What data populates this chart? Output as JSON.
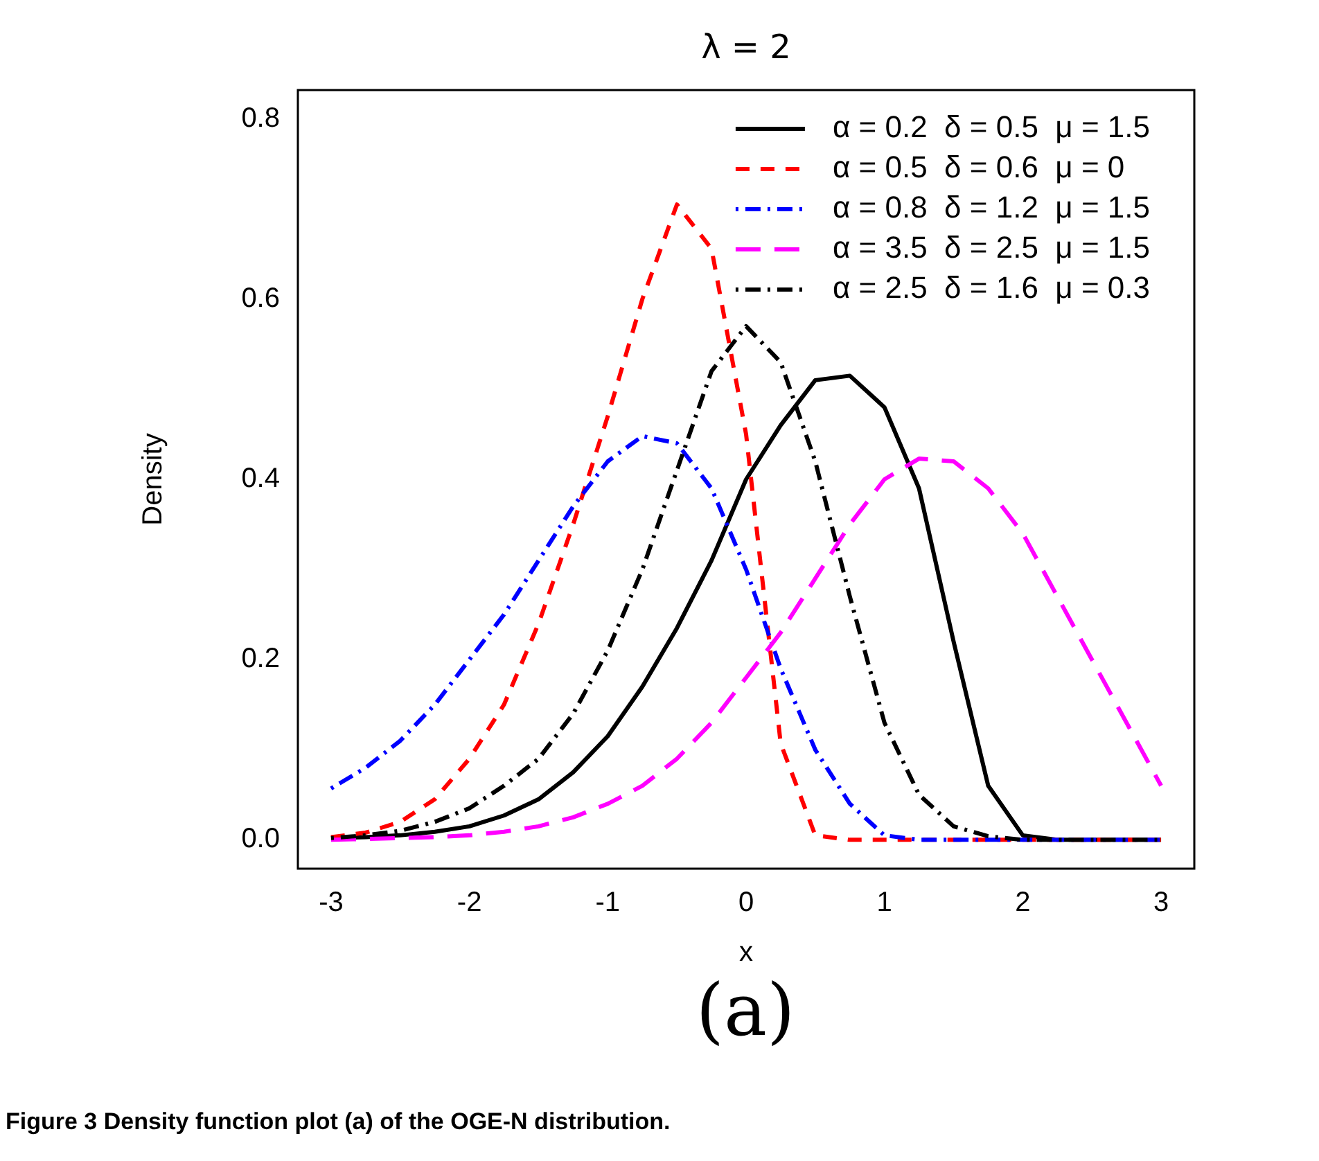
{
  "chart_data": {
    "type": "line",
    "title": "λ = 2",
    "xlabel": "x",
    "ylabel": "Density",
    "x": [
      -3,
      -2.75,
      -2.5,
      -2.25,
      -2,
      -1.75,
      -1.5,
      -1.25,
      -1,
      -0.75,
      -0.5,
      -0.25,
      0,
      0.25,
      0.5,
      0.75,
      1,
      1.25,
      1.5,
      1.75,
      2,
      2.25,
      2.5,
      2.75,
      3
    ],
    "series": [
      {
        "name": "α = 0.2  δ = 0.5  μ = 1.5",
        "color": "#000000",
        "line_style": "solid",
        "values": [
          0.002,
          0.003,
          0.005,
          0.009,
          0.015,
          0.027,
          0.045,
          0.075,
          0.115,
          0.17,
          0.235,
          0.31,
          0.4,
          0.46,
          0.51,
          0.515,
          0.48,
          0.39,
          0.22,
          0.06,
          0.005,
          0,
          0,
          0,
          0
        ]
      },
      {
        "name": "α = 0.5  δ = 0.6  μ = 0",
        "color": "#ff0000",
        "line_style": "dashed",
        "values": [
          0.003,
          0.008,
          0.02,
          0.045,
          0.09,
          0.15,
          0.24,
          0.35,
          0.47,
          0.6,
          0.705,
          0.656,
          0.45,
          0.107,
          0.005,
          0,
          0,
          0,
          0,
          0,
          0,
          0,
          0,
          0,
          0
        ]
      },
      {
        "name": "α = 0.8  δ = 1.2  μ = 1.5",
        "color": "#0000ff",
        "line_style": "dashdot",
        "values": [
          0.057,
          0.08,
          0.11,
          0.15,
          0.2,
          0.25,
          0.31,
          0.37,
          0.42,
          0.448,
          0.44,
          0.39,
          0.3,
          0.19,
          0.1,
          0.04,
          0.005,
          0,
          0,
          0,
          0,
          0,
          0,
          0,
          0
        ]
      },
      {
        "name": "α = 3.5  δ = 2.5  μ = 1.5",
        "color": "#ff00ff",
        "line_style": "longdash",
        "values": [
          0,
          0.001,
          0.002,
          0.003,
          0.005,
          0.009,
          0.015,
          0.025,
          0.04,
          0.06,
          0.09,
          0.13,
          0.18,
          0.23,
          0.29,
          0.35,
          0.4,
          0.423,
          0.42,
          0.39,
          0.34,
          0.27,
          0.2,
          0.13,
          0.06
        ]
      },
      {
        "name": "α = 2.5  δ = 1.6  μ = 0.3",
        "color": "#000000",
        "line_style": "dashdot",
        "values": [
          0.002,
          0.005,
          0.01,
          0.02,
          0.035,
          0.06,
          0.09,
          0.14,
          0.21,
          0.3,
          0.41,
          0.52,
          0.57,
          0.53,
          0.42,
          0.27,
          0.13,
          0.05,
          0.015,
          0.004,
          0,
          0,
          0,
          0,
          0
        ]
      }
    ],
    "xlim": [
      -3.24,
      3.24
    ],
    "xticks": [
      -3,
      -2,
      -1,
      0,
      1,
      2,
      3
    ],
    "ylim": [
      -0.032,
      0.832
    ],
    "yticks": [
      {
        "value": 0,
        "label": "0.0"
      },
      0.2,
      0.4,
      0.6,
      0.8
    ],
    "legend": "top right",
    "grid": false,
    "annotations": [
      "(a)",
      "Figure 3 Density function plot (a) of the OGE-N distribution."
    ]
  }
}
